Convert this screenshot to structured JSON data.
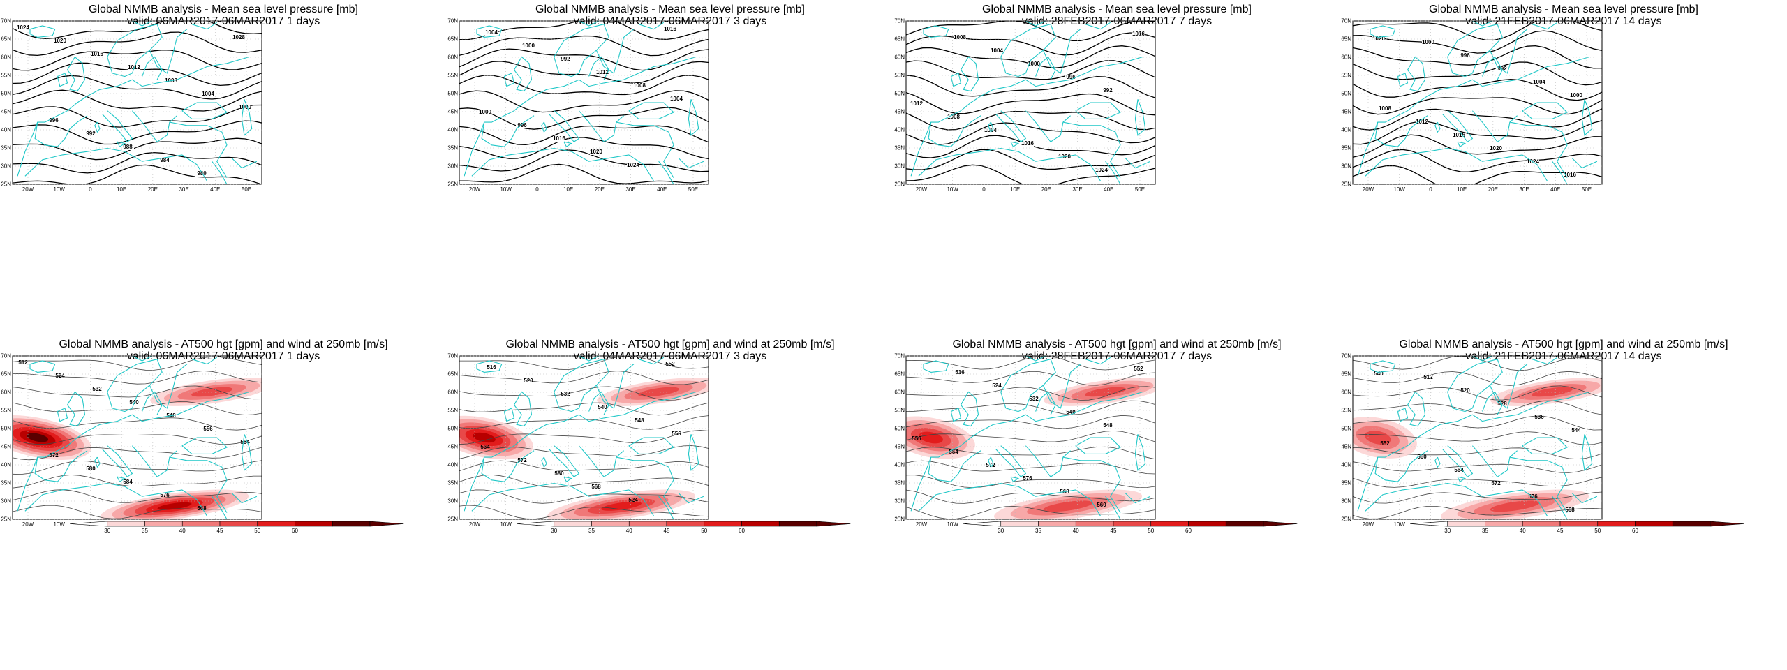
{
  "panels_top": [
    {
      "title1": "Global NMMB analysis - Mean sea level pressure [mb]",
      "title2": "valid: 06MAR2017-06MAR2017  1 days",
      "contour_labels": [
        "1024",
        "1020",
        "1016",
        "1012",
        "1008",
        "1004",
        "1000",
        "996",
        "992",
        "988",
        "984",
        "980",
        "1028"
      ]
    },
    {
      "title1": "Global NMMB analysis - Mean sea level pressure [mb]",
      "title2": "valid: 04MAR2017-06MAR2017  3 days",
      "contour_labels": [
        "1004",
        "1000",
        "992",
        "1012",
        "1008",
        "1004",
        "1000",
        "996",
        "1016",
        "1020",
        "1024",
        "1016"
      ]
    },
    {
      "title1": "Global NMMB analysis - Mean sea level pressure [mb]",
      "title2": "valid: 28FEB2017-06MAR2017  7 days",
      "contour_labels": [
        "1008",
        "1004",
        "1000",
        "996",
        "992",
        "1012",
        "1008",
        "1004",
        "1016",
        "1020",
        "1024",
        "1016"
      ]
    },
    {
      "title1": "Global NMMB analysis - Mean sea level pressure [mb]",
      "title2": "valid: 21FEB2017-06MAR2017  14 days",
      "contour_labels": [
        "1000",
        "996",
        "992",
        "1004",
        "1000",
        "1008",
        "1012",
        "1016",
        "1020",
        "1024",
        "1016",
        "1020"
      ]
    }
  ],
  "panels_bottom": [
    {
      "title1": "Global NMMB analysis - AT500 hgt [gpm] and wind at 250mb [m/s]",
      "title2": "valid: 06MAR2017-06MAR2017  1 days",
      "contour_labels": [
        "512",
        "524",
        "532",
        "540",
        "548",
        "556",
        "564",
        "572",
        "580",
        "584",
        "576",
        "568"
      ]
    },
    {
      "title1": "Global NMMB analysis - AT500 hgt [gpm] and wind at 250mb [m/s]",
      "title2": "valid: 04MAR2017-06MAR2017  3 days",
      "contour_labels": [
        "516",
        "520",
        "532",
        "540",
        "548",
        "556",
        "564",
        "572",
        "580",
        "568",
        "524",
        "552"
      ]
    },
    {
      "title1": "Global NMMB analysis - AT500 hgt [gpm] and wind at 250mb [m/s]",
      "title2": "valid: 28FEB2017-06MAR2017  7 days",
      "contour_labels": [
        "516",
        "524",
        "532",
        "540",
        "548",
        "556",
        "564",
        "572",
        "576",
        "568",
        "560",
        "552"
      ]
    },
    {
      "title1": "Global NMMB analysis - AT500 hgt [gpm] and wind at 250mb [m/s]",
      "title2": "valid: 21FEB2017-06MAR2017  14 days",
      "contour_labels": [
        "512",
        "520",
        "528",
        "536",
        "544",
        "552",
        "560",
        "564",
        "572",
        "576",
        "568",
        "540"
      ]
    }
  ],
  "lat_labels": [
    "25N",
    "30N",
    "35N",
    "40N",
    "45N",
    "50N",
    "55N",
    "60N",
    "65N",
    "70N"
  ],
  "lon_labels": [
    "20W",
    "10W",
    "0",
    "10E",
    "20E",
    "30E",
    "40E",
    "50E"
  ],
  "colorbar_labels": [
    "30",
    "35",
    "40",
    "45",
    "50",
    "60"
  ],
  "colors": {
    "coast": "#1fc7c7",
    "contour": "#000000",
    "contour_thin": "#444444",
    "grid": "#b8b8b8",
    "wind_levels": [
      "#fcd8d8",
      "#f7a8a8",
      "#f07878",
      "#e84848",
      "#e21c1c",
      "#b80000",
      "#5a0000"
    ]
  }
}
